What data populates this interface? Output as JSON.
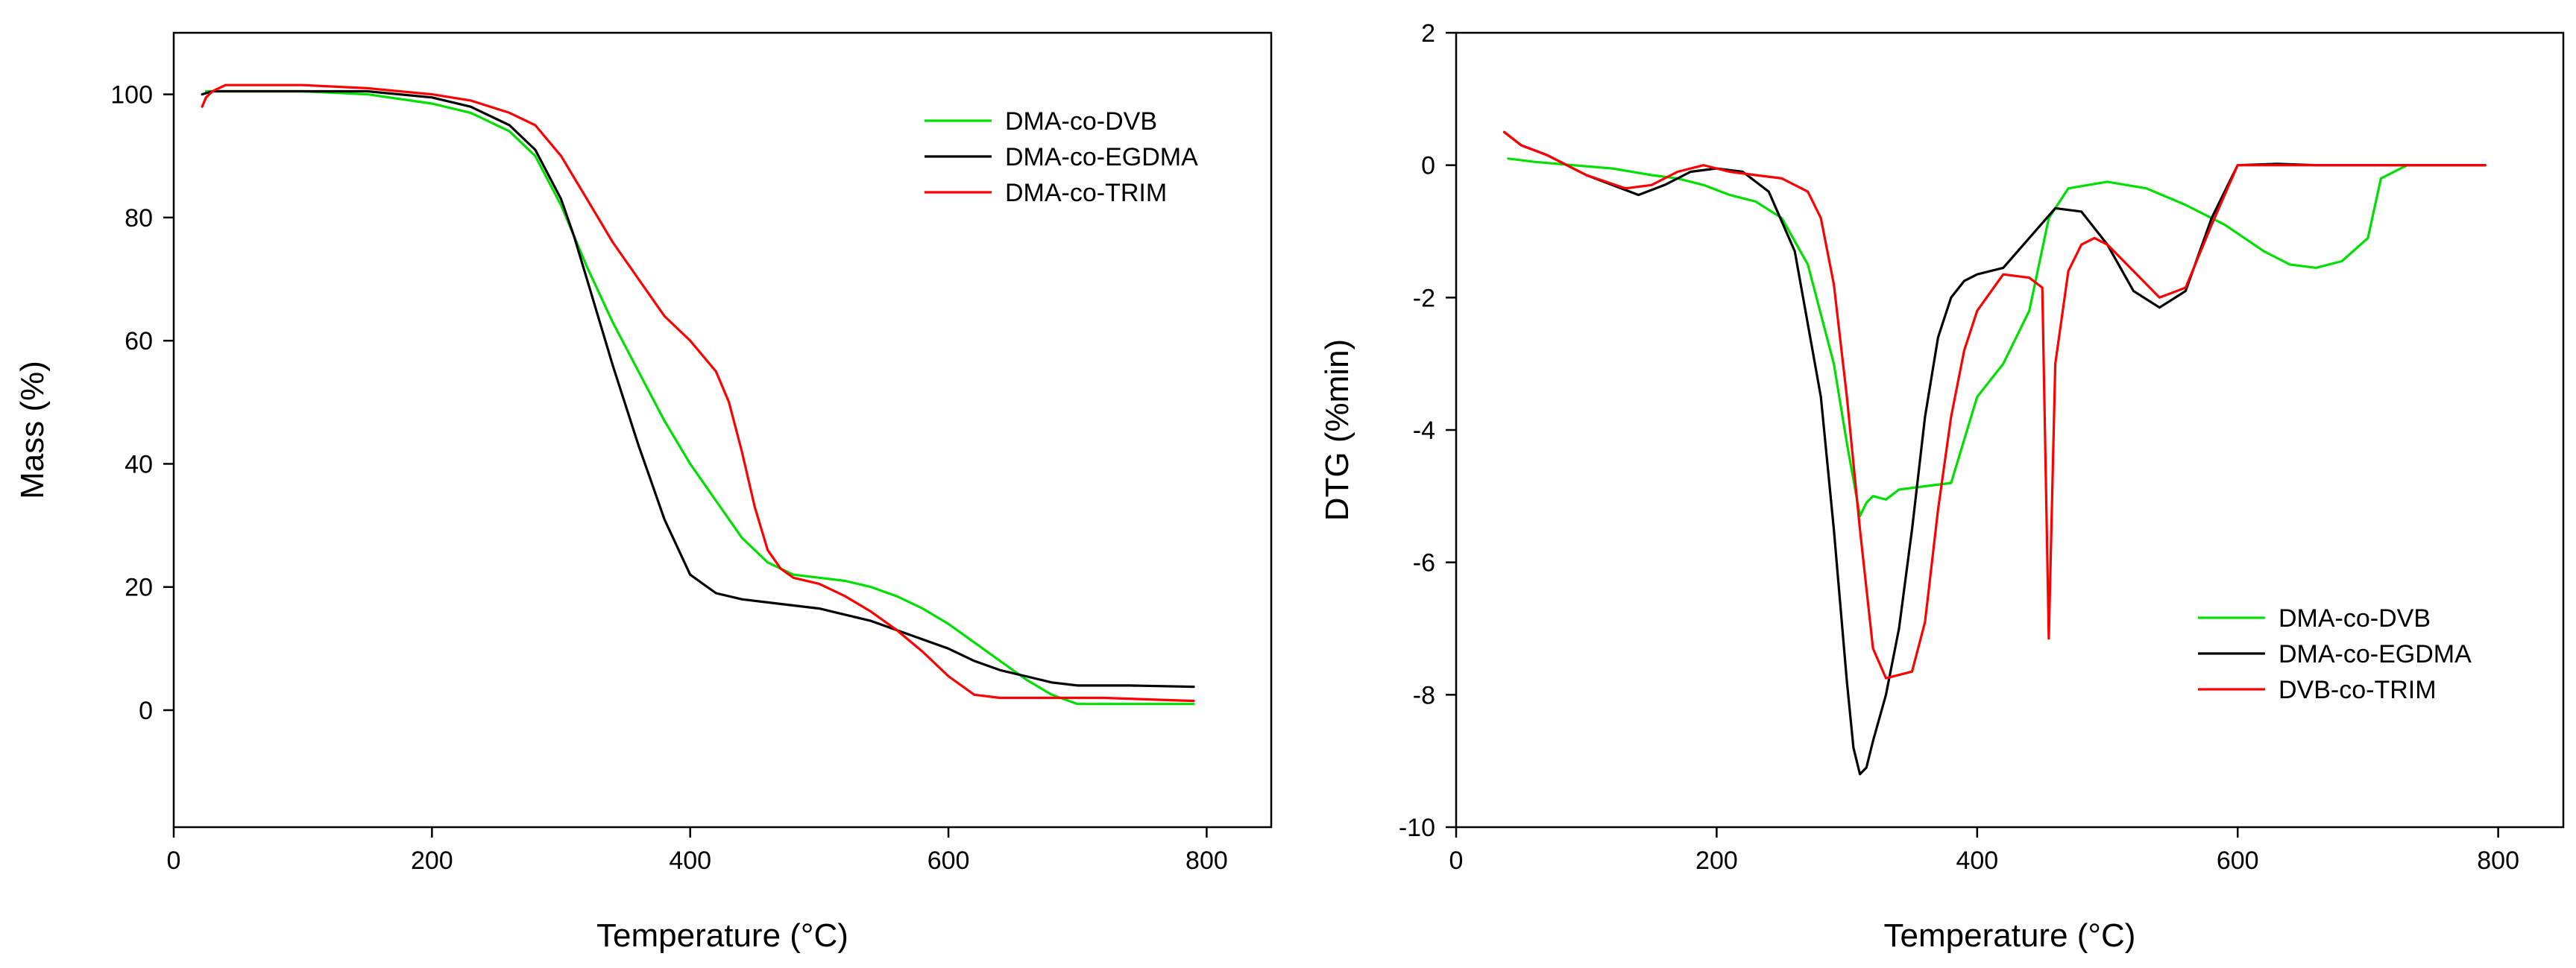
{
  "chart_data": [
    {
      "type": "line",
      "title": "",
      "xlabel": "Temperature (°C)",
      "ylabel": "Mass (%)",
      "xlim": [
        0,
        850
      ],
      "ylim": [
        -19,
        110
      ],
      "xticks": [
        0,
        200,
        400,
        600,
        800
      ],
      "yticks": [
        0,
        20,
        40,
        60,
        80,
        100
      ],
      "grid": false,
      "legend_position": "top-right",
      "series": [
        {
          "name": "DMA-co-DVB",
          "color": "#00e000",
          "x": [
            25,
            50,
            100,
            150,
            200,
            230,
            260,
            280,
            300,
            320,
            340,
            360,
            380,
            400,
            420,
            440,
            460,
            480,
            500,
            520,
            540,
            560,
            580,
            600,
            620,
            640,
            660,
            680,
            700,
            720,
            750,
            790
          ],
          "y": [
            100.5,
            100.5,
            100.5,
            100,
            98.5,
            97,
            94,
            90,
            82,
            72,
            63,
            55,
            47,
            40,
            34,
            28,
            24,
            22,
            21.5,
            21,
            20,
            18.5,
            16.5,
            14,
            11,
            8,
            5,
            2.5,
            1,
            1,
            1,
            1
          ]
        },
        {
          "name": "DMA-co-EGDMA",
          "color": "#000000",
          "x": [
            22,
            30,
            50,
            100,
            150,
            200,
            230,
            260,
            280,
            300,
            310,
            320,
            340,
            360,
            370,
            380,
            400,
            420,
            440,
            460,
            480,
            500,
            520,
            540,
            560,
            580,
            600,
            620,
            640,
            660,
            680,
            700,
            740,
            790
          ],
          "y": [
            100,
            100.5,
            100.5,
            100.5,
            100.5,
            99.5,
            98,
            95,
            91,
            83,
            77,
            70,
            56,
            43,
            37,
            31,
            22,
            19,
            18,
            17.5,
            17,
            16.5,
            15.5,
            14.5,
            13,
            11.5,
            10,
            8,
            6.5,
            5.5,
            4.5,
            4,
            4,
            3.8
          ]
        },
        {
          "name": "DMA-co-TRIM",
          "color": "#ff0000",
          "x": [
            22,
            25,
            30,
            40,
            60,
            100,
            150,
            200,
            230,
            260,
            280,
            300,
            320,
            340,
            360,
            380,
            400,
            420,
            430,
            440,
            450,
            460,
            470,
            480,
            500,
            520,
            540,
            560,
            580,
            600,
            620,
            640,
            680,
            720,
            790
          ],
          "y": [
            98,
            99.5,
            100.5,
            101.5,
            101.5,
            101.5,
            101,
            100,
            99,
            97,
            95,
            90,
            83,
            76,
            70,
            64,
            60,
            55,
            50,
            42,
            33,
            26,
            23,
            21.5,
            20.5,
            18.5,
            16,
            13,
            9.5,
            5.5,
            2.5,
            2,
            2,
            2,
            1.5
          ]
        }
      ]
    },
    {
      "type": "line",
      "title": "",
      "xlabel": "Temperature (°C)",
      "ylabel": "DTG (%min)",
      "xlim": [
        0,
        850
      ],
      "ylim": [
        -10,
        2
      ],
      "xticks": [
        0,
        200,
        400,
        600,
        800
      ],
      "yticks": [
        -10,
        -8,
        -6,
        -4,
        -2,
        0,
        2
      ],
      "grid": false,
      "legend_position": "bottom-right",
      "series": [
        {
          "name": "DMA-co-DVB",
          "color": "#00e000",
          "x": [
            40,
            60,
            90,
            120,
            150,
            170,
            190,
            210,
            230,
            250,
            270,
            290,
            300,
            310,
            315,
            320,
            330,
            340,
            360,
            380,
            400,
            420,
            440,
            455,
            470,
            500,
            530,
            560,
            590,
            620,
            640,
            660,
            680,
            700,
            710,
            730,
            760,
            790
          ],
          "y": [
            0.1,
            0.05,
            0,
            -0.05,
            -0.15,
            -0.2,
            -0.3,
            -0.45,
            -0.55,
            -0.8,
            -1.5,
            -3,
            -4.2,
            -5.3,
            -5.1,
            -5.0,
            -5.05,
            -4.9,
            -4.85,
            -4.8,
            -3.5,
            -3.0,
            -2.2,
            -0.8,
            -0.35,
            -0.25,
            -0.35,
            -0.6,
            -0.9,
            -1.3,
            -1.5,
            -1.55,
            -1.45,
            -1.1,
            -0.2,
            0,
            0,
            0
          ]
        },
        {
          "name": "DMA-co-EGDMA",
          "color": "#000000",
          "x": [
            37,
            50,
            70,
            100,
            140,
            160,
            180,
            200,
            220,
            240,
            260,
            280,
            290,
            300,
            305,
            310,
            315,
            320,
            330,
            340,
            350,
            360,
            370,
            380,
            390,
            400,
            420,
            440,
            460,
            480,
            500,
            520,
            540,
            560,
            580,
            600,
            630,
            660,
            700,
            760,
            790
          ],
          "y": [
            0.5,
            0.3,
            0.15,
            -0.15,
            -0.45,
            -0.3,
            -0.1,
            -0.05,
            -0.1,
            -0.4,
            -1.3,
            -3.5,
            -5.5,
            -7.8,
            -8.8,
            -9.2,
            -9.1,
            -8.7,
            -8.0,
            -7.0,
            -5.5,
            -3.8,
            -2.6,
            -2.0,
            -1.75,
            -1.65,
            -1.55,
            -1.1,
            -0.65,
            -0.7,
            -1.2,
            -1.9,
            -2.15,
            -1.9,
            -0.8,
            0,
            0.02,
            0,
            0,
            0,
            0
          ]
        },
        {
          "name": "DVB-co-TRIM",
          "color": "#ff0000",
          "x": [
            37,
            50,
            70,
            100,
            130,
            150,
            170,
            190,
            210,
            230,
            250,
            270,
            280,
            290,
            300,
            310,
            320,
            330,
            340,
            350,
            360,
            370,
            380,
            390,
            400,
            420,
            440,
            450,
            455,
            460,
            470,
            480,
            490,
            500,
            520,
            540,
            560,
            580,
            600,
            630,
            660,
            700,
            760,
            790
          ],
          "y": [
            0.5,
            0.3,
            0.15,
            -0.15,
            -0.35,
            -0.3,
            -0.1,
            0,
            -0.1,
            -0.15,
            -0.2,
            -0.4,
            -0.8,
            -1.8,
            -3.5,
            -5.5,
            -7.3,
            -7.75,
            -7.7,
            -7.65,
            -6.9,
            -5.2,
            -3.8,
            -2.8,
            -2.2,
            -1.65,
            -1.7,
            -1.85,
            -7.15,
            -3.0,
            -1.6,
            -1.2,
            -1.1,
            -1.2,
            -1.6,
            -2.0,
            -1.85,
            -0.9,
            0,
            0,
            0,
            0,
            0,
            0
          ]
        }
      ]
    }
  ]
}
